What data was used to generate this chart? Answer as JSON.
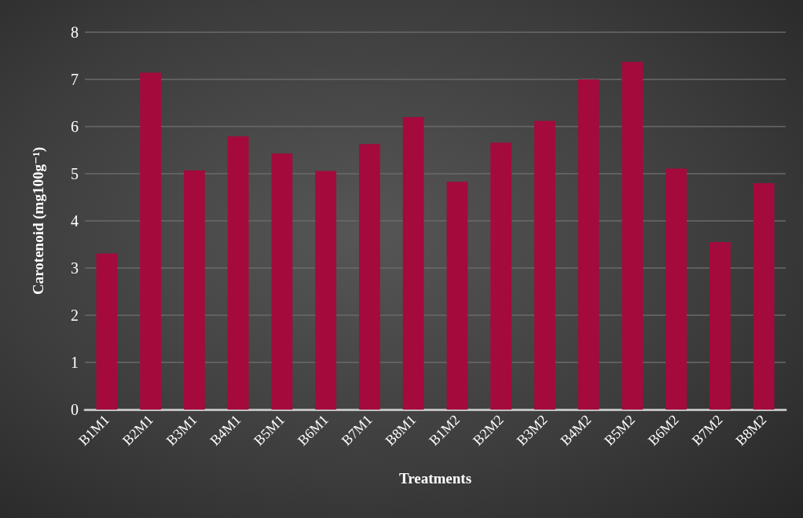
{
  "chart_data": {
    "type": "bar",
    "xlabel": "Treatments",
    "ylabel": "Carotenoid (mg100g⁻¹)",
    "categories": [
      "B1M1",
      "B2M1",
      "B3M1",
      "B4M1",
      "B5M1",
      "B6M1",
      "B7M1",
      "B8M1",
      "B1M2",
      "B2M2",
      "B3M2",
      "B4M2",
      "B5M2",
      "B6M2",
      "B7M2",
      "B8M2"
    ],
    "values": [
      3.31,
      7.14,
      5.07,
      5.79,
      5.43,
      5.06,
      5.63,
      6.2,
      4.83,
      5.66,
      6.12,
      7.0,
      7.37,
      5.11,
      3.55,
      4.8
    ],
    "color": "#a50a3c",
    "ylim": [
      0,
      8
    ],
    "yticks": [
      0,
      1,
      2,
      3,
      4,
      5,
      6,
      7,
      8
    ],
    "grid": "y"
  }
}
